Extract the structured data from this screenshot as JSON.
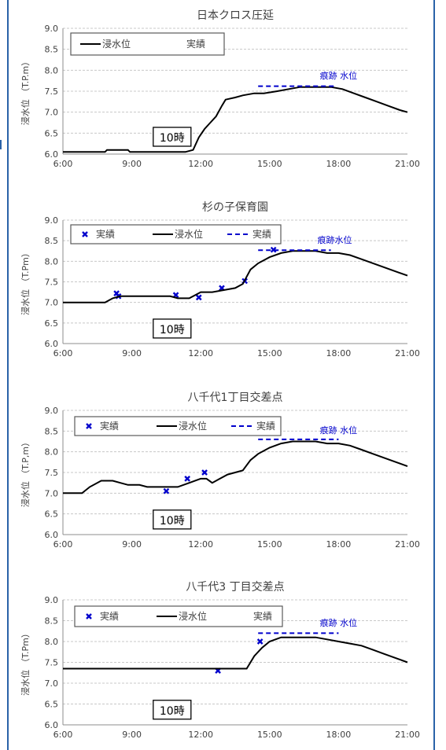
{
  "chart_data": [
    {
      "type": "line",
      "title": "日本クロス圧延",
      "ylabel": "浸水位 （T.P.m）",
      "ylim": [
        6.0,
        9.0
      ],
      "yticks": [
        "6.0",
        "6.5",
        "7.0",
        "7.5",
        "8.0",
        "8.5",
        "9.0"
      ],
      "xlim": [
        "6:00",
        "21:00"
      ],
      "xticks": [
        "6:00",
        "9:00",
        "12:00",
        "15:00",
        "18:00",
        "21:00"
      ],
      "grid": true,
      "legend_position": "top-left",
      "legend": [
        {
          "marker": "line",
          "label": "浸水位"
        },
        {
          "marker": "none",
          "label": "実績"
        }
      ],
      "series": [
        {
          "name": "浸水位",
          "kind": "line",
          "color": "#000000",
          "x": [
            "6:00",
            "7:50",
            "7:55",
            "8:50",
            "8:55",
            "11:20",
            "11:40",
            "11:55",
            "12:10",
            "12:25",
            "12:40",
            "12:55",
            "13:05",
            "13:30",
            "13:50",
            "14:20",
            "14:45",
            "15:20",
            "15:50",
            "16:20",
            "16:50",
            "17:40",
            "18:10",
            "18:40",
            "19:10",
            "19:40",
            "20:10",
            "20:40",
            "21:00"
          ],
          "y": [
            6.05,
            6.05,
            6.1,
            6.1,
            6.05,
            6.05,
            6.1,
            6.4,
            6.6,
            6.75,
            6.9,
            7.15,
            7.3,
            7.35,
            7.4,
            7.45,
            7.45,
            7.5,
            7.55,
            7.6,
            7.6,
            7.6,
            7.55,
            7.45,
            7.35,
            7.25,
            7.15,
            7.05,
            7.0
          ]
        },
        {
          "name": "実績",
          "kind": "dash",
          "color": "#0000cc",
          "x": [
            "14:30",
            "17:50"
          ],
          "y": [
            7.62,
            7.62
          ]
        }
      ],
      "annotations": [
        {
          "text": "痕跡 水位",
          "color": "#0000cc",
          "x": "18:00",
          "y": 7.8
        },
        {
          "text": "10時",
          "boxed": true,
          "x": "10:00",
          "y": 6.3
        }
      ]
    },
    {
      "type": "line",
      "title": "杉の子保育園",
      "ylabel": "浸水位 （T.Pm）",
      "ylim": [
        6.0,
        9.0
      ],
      "yticks": [
        "6.0",
        "6.5",
        "7.0",
        "7.5",
        "8.0",
        "8.5",
        "9.0"
      ],
      "xlim": [
        "6:00",
        "21:00"
      ],
      "xticks": [
        "6:00",
        "9:00",
        "12:00",
        "15:00",
        "18:00",
        "21:00"
      ],
      "grid": true,
      "legend_position": "top-left",
      "legend": [
        {
          "marker": "x",
          "label": "実績"
        },
        {
          "marker": "line",
          "label": "浸水位"
        },
        {
          "marker": "dash",
          "label": "実績"
        }
      ],
      "series": [
        {
          "name": "実績",
          "kind": "scatter",
          "color": "#0000cc",
          "x": [
            "8:20",
            "8:25",
            "10:55",
            "11:55",
            "12:55",
            "13:55",
            "15:10"
          ],
          "y": [
            7.22,
            7.15,
            7.18,
            7.12,
            7.35,
            7.52,
            8.28
          ]
        },
        {
          "name": "浸水位",
          "kind": "line",
          "color": "#000000",
          "x": [
            "6:00",
            "7:50",
            "8:10",
            "8:30",
            "10:40",
            "11:00",
            "11:30",
            "11:50",
            "12:00",
            "12:30",
            "13:00",
            "13:30",
            "13:50",
            "14:10",
            "14:30",
            "15:00",
            "15:30",
            "16:00",
            "16:30",
            "17:00",
            "17:30",
            "18:00",
            "18:30",
            "19:00",
            "19:30",
            "20:00",
            "20:30",
            "21:00"
          ],
          "y": [
            7.0,
            7.0,
            7.1,
            7.15,
            7.15,
            7.1,
            7.1,
            7.2,
            7.25,
            7.25,
            7.3,
            7.35,
            7.45,
            7.8,
            7.95,
            8.1,
            8.2,
            8.25,
            8.25,
            8.25,
            8.2,
            8.2,
            8.15,
            8.05,
            7.95,
            7.85,
            7.75,
            7.65
          ]
        },
        {
          "name": "実績",
          "kind": "dash",
          "color": "#0000cc",
          "x": [
            "14:30",
            "17:40"
          ],
          "y": [
            8.27,
            8.27
          ]
        }
      ],
      "annotations": [
        {
          "text": "痕跡水位",
          "color": "#0000cc",
          "x": "17:50",
          "y": 8.45
        },
        {
          "text": "10時",
          "boxed": true,
          "x": "10:00",
          "y": 6.25
        }
      ]
    },
    {
      "type": "line",
      "title": "八千代1丁目交差点",
      "ylabel": "浸水位 （T.P,m）",
      "ylim": [
        6.0,
        9.0
      ],
      "yticks": [
        "6.0",
        "6.5",
        "7.0",
        "7.5",
        "8.0",
        "8.5",
        "9.0"
      ],
      "xlim": [
        "6:00",
        "21:00"
      ],
      "xticks": [
        "6:00",
        "9:00",
        "12:00",
        "15:00",
        "18:00",
        "21:00"
      ],
      "grid": true,
      "legend_position": "top-left",
      "legend": [
        {
          "marker": "x",
          "label": "実績"
        },
        {
          "marker": "line",
          "label": "浸水位"
        },
        {
          "marker": "dash",
          "label": "実績"
        }
      ],
      "series": [
        {
          "name": "実績",
          "kind": "scatter",
          "color": "#0000cc",
          "x": [
            "10:30",
            "11:25",
            "12:10"
          ],
          "y": [
            7.05,
            7.35,
            7.5
          ]
        },
        {
          "name": "浸水位",
          "kind": "line",
          "color": "#000000",
          "x": [
            "6:00",
            "6:50",
            "7:10",
            "7:40",
            "8:10",
            "8:30",
            "8:50",
            "9:20",
            "9:40",
            "10:00",
            "11:00",
            "11:30",
            "12:00",
            "12:15",
            "12:30",
            "12:50",
            "13:10",
            "13:30",
            "13:50",
            "14:10",
            "14:30",
            "15:00",
            "15:30",
            "16:00",
            "16:30",
            "17:00",
            "17:30",
            "18:00",
            "18:30",
            "19:00",
            "19:30",
            "20:00",
            "20:30",
            "21:00"
          ],
          "y": [
            7.0,
            7.0,
            7.15,
            7.3,
            7.3,
            7.25,
            7.2,
            7.2,
            7.15,
            7.15,
            7.15,
            7.25,
            7.35,
            7.35,
            7.25,
            7.35,
            7.45,
            7.5,
            7.55,
            7.8,
            7.95,
            8.1,
            8.2,
            8.25,
            8.25,
            8.25,
            8.2,
            8.2,
            8.15,
            8.05,
            7.95,
            7.85,
            7.75,
            7.65
          ]
        },
        {
          "name": "実績",
          "kind": "dash",
          "color": "#0000cc",
          "x": [
            "14:30",
            "18:00"
          ],
          "y": [
            8.3,
            8.3
          ]
        }
      ],
      "annotations": [
        {
          "text": "痕跡 水位",
          "color": "#0000cc",
          "x": "18:00",
          "y": 8.45
        },
        {
          "text": "10時",
          "boxed": true,
          "x": "10:00",
          "y": 6.25
        }
      ]
    },
    {
      "type": "line",
      "title": "八千代3 丁目交差点",
      "ylabel": "浸水位 （T.Pm）",
      "ylim": [
        6.0,
        9.0
      ],
      "yticks": [
        "6.0",
        "6.5",
        "7.0",
        "7.5",
        "8.0",
        "8.5",
        "9.0"
      ],
      "xlim": [
        "6:00",
        "21:00"
      ],
      "xticks": [
        "6:00",
        "9:00",
        "12:00",
        "15:00",
        "18:00",
        "21:00"
      ],
      "grid": true,
      "legend_position": "top-left",
      "legend": [
        {
          "marker": "x",
          "label": "実績"
        },
        {
          "marker": "line",
          "label": "浸水位"
        },
        {
          "marker": "none",
          "label": "実績"
        }
      ],
      "series": [
        {
          "name": "実績",
          "kind": "scatter",
          "color": "#0000cc",
          "x": [
            "12:45",
            "14:35"
          ],
          "y": [
            7.3,
            8.0
          ]
        },
        {
          "name": "浸水位",
          "kind": "line",
          "color": "#000000",
          "x": [
            "6:00",
            "14:00",
            "14:20",
            "14:40",
            "15:00",
            "15:30",
            "16:00",
            "16:30",
            "17:00",
            "17:30",
            "18:00",
            "18:30",
            "19:00",
            "19:30",
            "20:00",
            "20:30",
            "21:00"
          ],
          "y": [
            7.35,
            7.35,
            7.65,
            7.85,
            8.0,
            8.1,
            8.1,
            8.1,
            8.1,
            8.05,
            8.0,
            7.95,
            7.9,
            7.8,
            7.7,
            7.6,
            7.5
          ]
        },
        {
          "name": "実績",
          "kind": "dash",
          "color": "#0000cc",
          "x": [
            "14:30",
            "18:00"
          ],
          "y": [
            8.2,
            8.2
          ]
        }
      ],
      "annotations": [
        {
          "text": "痕跡 水位",
          "color": "#0000cc",
          "x": "18:00",
          "y": 8.38
        },
        {
          "text": "10時",
          "boxed": true,
          "x": "10:00",
          "y": 6.25
        }
      ]
    }
  ]
}
